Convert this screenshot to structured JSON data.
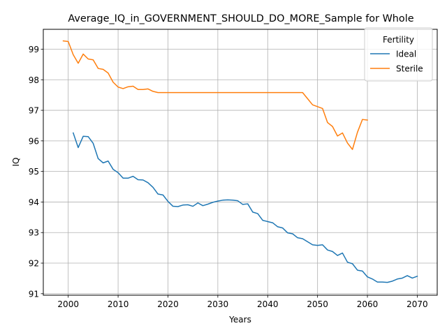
{
  "chart_data": {
    "type": "line",
    "title": "Average_IQ_in_GOVERNMENT_SHOULD_DO_MORE_Sample for Whole",
    "xlabel": "Years",
    "ylabel": "IQ",
    "xlim": [
      1995,
      2074
    ],
    "ylim": [
      90.95,
      99.65
    ],
    "xticks": [
      2000,
      2010,
      2020,
      2030,
      2040,
      2050,
      2060,
      2070
    ],
    "yticks": [
      91,
      92,
      93,
      94,
      95,
      96,
      97,
      98,
      99
    ],
    "grid": true,
    "legend": {
      "title": "Fertility",
      "location": "upper right"
    },
    "series": [
      {
        "name": "Ideal",
        "color": "#1f77b4",
        "x": [
          2001,
          2002,
          2003,
          2004,
          2005,
          2006,
          2007,
          2008,
          2009,
          2010,
          2011,
          2012,
          2013,
          2014,
          2015,
          2016,
          2017,
          2018,
          2019,
          2020,
          2021,
          2022,
          2023,
          2024,
          2025,
          2026,
          2027,
          2028,
          2029,
          2030,
          2031,
          2032,
          2033,
          2034,
          2035,
          2036,
          2037,
          2038,
          2039,
          2040,
          2041,
          2042,
          2043,
          2044,
          2045,
          2046,
          2047,
          2048,
          2049,
          2050,
          2051,
          2052,
          2053,
          2054,
          2055,
          2056,
          2057,
          2058,
          2059,
          2060,
          2061,
          2062,
          2063,
          2064,
          2065,
          2066,
          2067,
          2068,
          2069,
          2070
        ],
        "values": [
          96.26,
          95.78,
          96.15,
          96.14,
          95.92,
          95.42,
          95.28,
          95.34,
          95.07,
          94.96,
          94.78,
          94.78,
          94.84,
          94.73,
          94.72,
          94.63,
          94.48,
          94.26,
          94.23,
          94.02,
          93.86,
          93.85,
          93.9,
          93.91,
          93.86,
          93.97,
          93.88,
          93.93,
          93.99,
          94.03,
          94.06,
          94.07,
          94.06,
          94.04,
          93.92,
          93.94,
          93.67,
          93.62,
          93.4,
          93.36,
          93.32,
          93.19,
          93.15,
          92.99,
          92.96,
          92.83,
          92.8,
          92.7,
          92.6,
          92.58,
          92.6,
          92.43,
          92.38,
          92.25,
          92.33,
          92.03,
          91.98,
          91.77,
          91.74,
          91.55,
          91.48,
          91.38,
          91.38,
          91.37,
          91.41,
          91.48,
          91.51,
          91.59,
          91.51,
          91.57
        ]
      },
      {
        "name": "Sterile",
        "color": "#ff7f0e",
        "x": [
          1999,
          2000,
          2001,
          2002,
          2003,
          2004,
          2005,
          2006,
          2007,
          2008,
          2009,
          2010,
          2011,
          2012,
          2013,
          2014,
          2015,
          2016,
          2017,
          2018,
          2019,
          2020,
          2021,
          2022,
          2023,
          2024,
          2025,
          2026,
          2027,
          2028,
          2029,
          2030,
          2031,
          2032,
          2033,
          2034,
          2035,
          2036,
          2037,
          2038,
          2039,
          2040,
          2041,
          2042,
          2043,
          2044,
          2045,
          2046,
          2047,
          2048,
          2049,
          2050,
          2051,
          2052,
          2053,
          2054,
          2055,
          2056,
          2057,
          2058,
          2059,
          2060
        ],
        "values": [
          99.27,
          99.25,
          98.82,
          98.54,
          98.84,
          98.68,
          98.65,
          98.37,
          98.34,
          98.22,
          97.92,
          97.76,
          97.71,
          97.77,
          97.79,
          97.68,
          97.68,
          97.7,
          97.62,
          97.58,
          97.58,
          97.58,
          97.58,
          97.58,
          97.58,
          97.58,
          97.58,
          97.58,
          97.58,
          97.58,
          97.58,
          97.58,
          97.58,
          97.58,
          97.58,
          97.58,
          97.58,
          97.58,
          97.58,
          97.58,
          97.58,
          97.58,
          97.58,
          97.58,
          97.58,
          97.58,
          97.58,
          97.58,
          97.58,
          97.38,
          97.18,
          97.12,
          97.06,
          96.6,
          96.47,
          96.16,
          96.26,
          95.93,
          95.72,
          96.28,
          96.7,
          96.68
        ]
      }
    ]
  }
}
